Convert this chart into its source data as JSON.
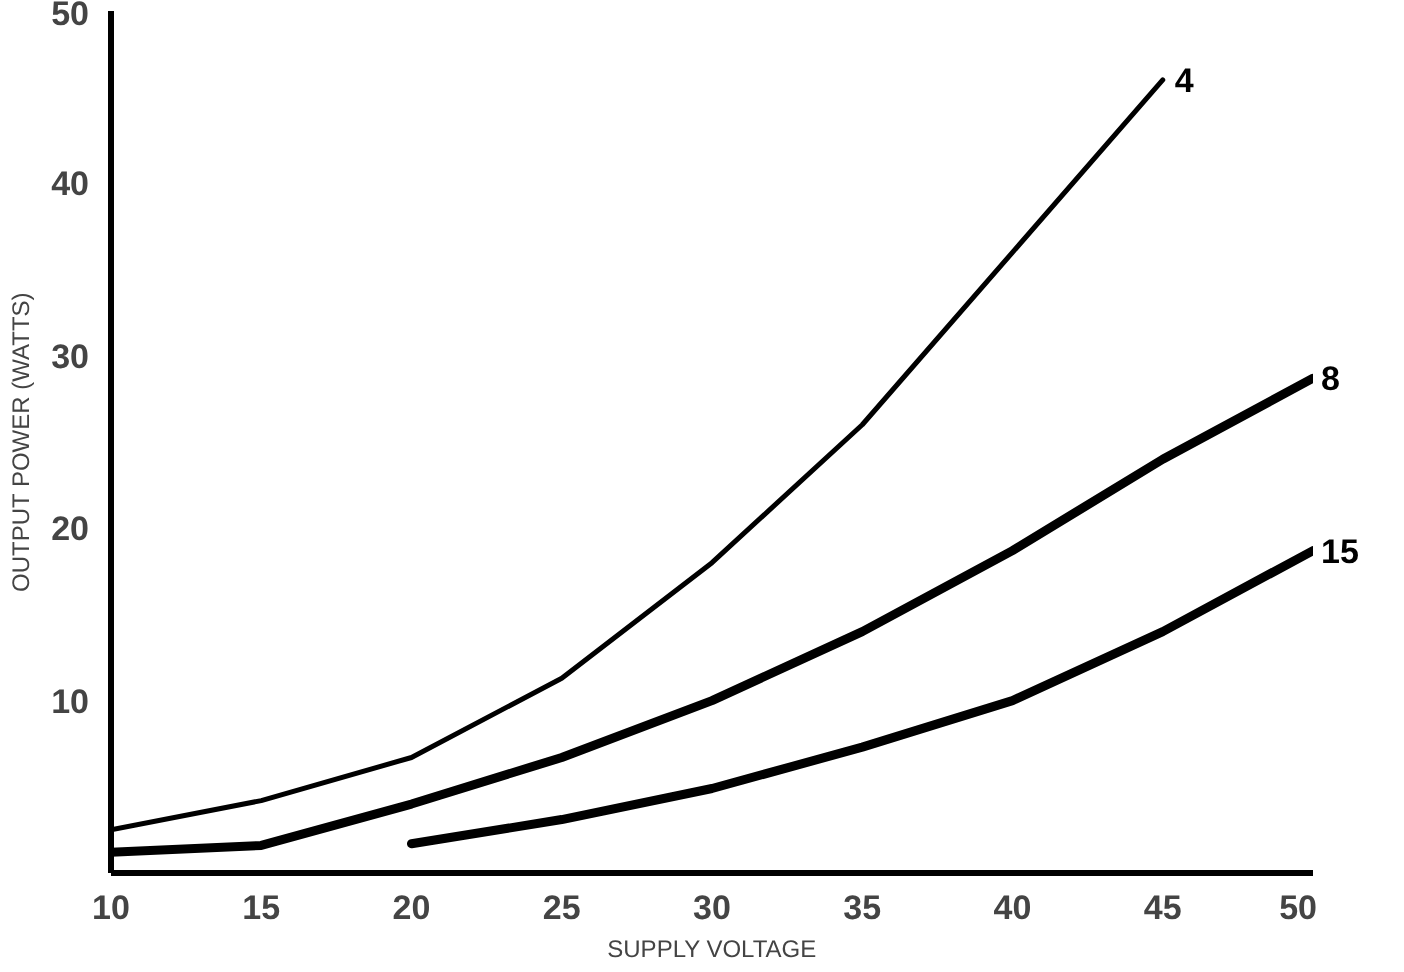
{
  "chart_data": {
    "type": "line",
    "xlabel": "SUPPLY VOLTAGE",
    "ylabel": "OUTPUT POWER (WATTS)",
    "xlim": [
      10,
      50
    ],
    "ylim": [
      0,
      50
    ],
    "xticks": [
      10,
      15,
      20,
      25,
      30,
      35,
      40,
      45,
      50
    ],
    "yticks": [
      10,
      20,
      30,
      40,
      50
    ],
    "grid": false,
    "marker": "none",
    "line_style": "solid",
    "series": [
      {
        "name": "4",
        "color": "#000000",
        "x": [
          10,
          15,
          20,
          25,
          30,
          35,
          40,
          45
        ],
        "values": [
          2.5,
          4.2,
          6.7,
          11.3,
          18,
          26,
          36,
          46
        ]
      },
      {
        "name": "8",
        "color": "#000000",
        "x": [
          10,
          15,
          20,
          25,
          30,
          35,
          40,
          45,
          50
        ],
        "values": [
          1.2,
          1.6,
          4,
          6.7,
          10,
          14,
          18.7,
          24,
          28.7
        ]
      },
      {
        "name": "15",
        "color": "#000000",
        "x": [
          20,
          25,
          30,
          35,
          40,
          45,
          50
        ],
        "values": [
          1.7,
          3.1,
          4.9,
          7.3,
          10,
          14,
          18.7
        ]
      }
    ]
  }
}
